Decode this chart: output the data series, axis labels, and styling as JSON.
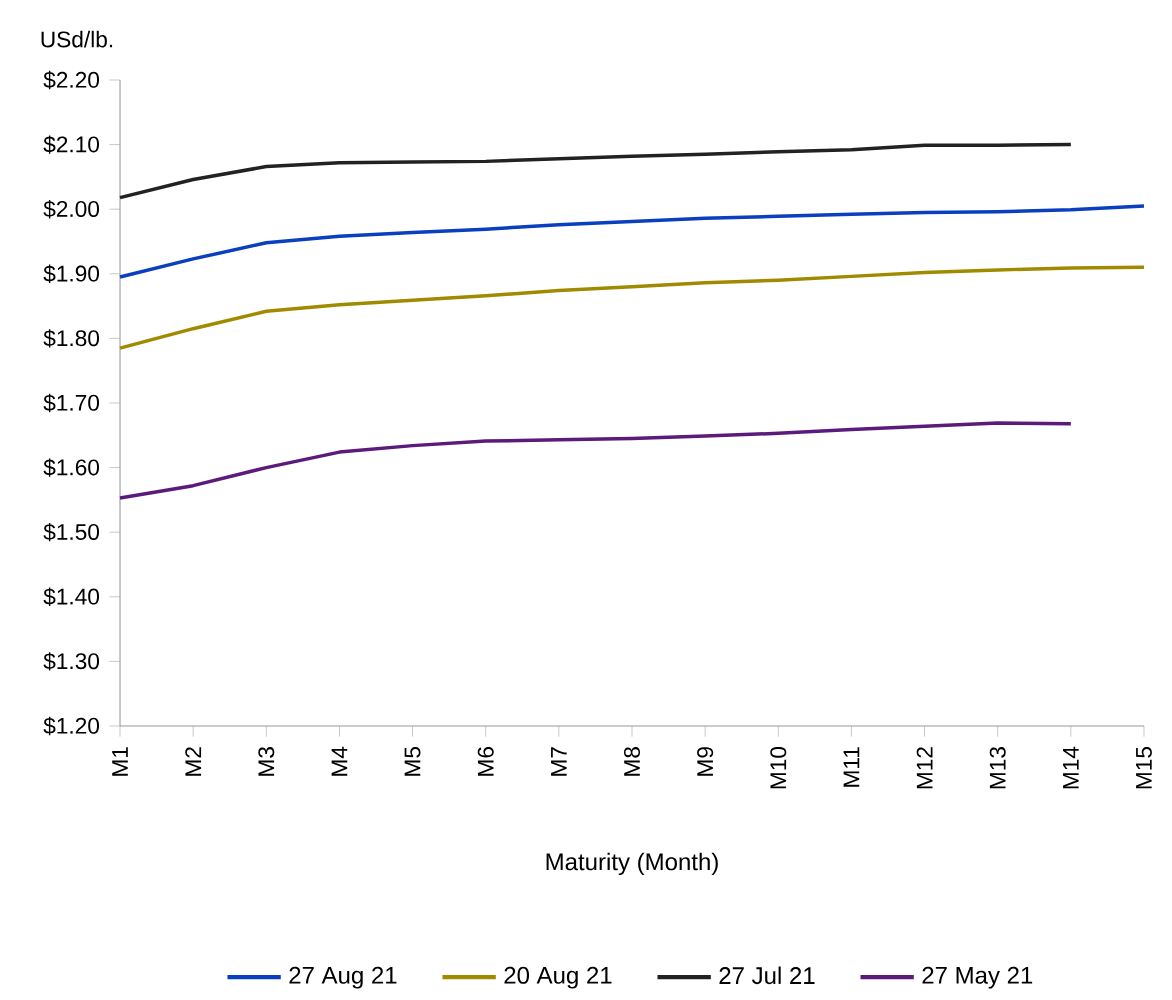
{
  "chart_data": {
    "type": "line",
    "ylabel": "USd/lb.",
    "xlabel": "Maturity (Month)",
    "categories": [
      "M1",
      "M2",
      "M3",
      "M4",
      "M5",
      "M6",
      "M7",
      "M8",
      "M9",
      "M10",
      "M11",
      "M12",
      "M13",
      "M14",
      "M15"
    ],
    "series": [
      {
        "name": "27 Aug 21",
        "color": "#0a3fbf",
        "values": [
          1.895,
          1.923,
          1.948,
          1.958,
          1.964,
          1.969,
          1.976,
          1.981,
          1.986,
          1.989,
          1.992,
          1.995,
          1.996,
          1.999,
          2.005
        ]
      },
      {
        "name": "20 Aug 21",
        "color": "#a08a00",
        "values": [
          1.785,
          1.815,
          1.842,
          1.852,
          1.859,
          1.866,
          1.874,
          1.88,
          1.886,
          1.89,
          1.896,
          1.902,
          1.906,
          1.909,
          1.91
        ]
      },
      {
        "name": "27 Jul 21",
        "color": "#222222",
        "values": [
          2.018,
          2.046,
          2.066,
          2.072,
          2.073,
          2.074,
          2.078,
          2.082,
          2.085,
          2.089,
          2.092,
          2.099,
          2.099,
          2.1,
          null
        ]
      },
      {
        "name": "27 May 21",
        "color": "#5c1a7a",
        "values": [
          1.553,
          1.572,
          1.6,
          1.624,
          1.634,
          1.641,
          1.643,
          1.645,
          1.649,
          1.653,
          1.659,
          1.664,
          1.669,
          1.668,
          null
        ]
      }
    ],
    "ylim": [
      1.2,
      2.2
    ],
    "yticks": [
      {
        "value": 1.2,
        "label": "$1.20"
      },
      {
        "value": 1.3,
        "label": "$1.30"
      },
      {
        "value": 1.4,
        "label": "$1.40"
      },
      {
        "value": 1.5,
        "label": "$1.50"
      },
      {
        "value": 1.6,
        "label": "$1.60"
      },
      {
        "value": 1.7,
        "label": "$1.70"
      },
      {
        "value": 1.8,
        "label": "$1.80"
      },
      {
        "value": 1.9,
        "label": "$1.90"
      },
      {
        "value": 2.0,
        "label": "$2.00"
      },
      {
        "value": 2.1,
        "label": "$2.10"
      },
      {
        "value": 2.2,
        "label": "$2.20"
      }
    ],
    "grid": false,
    "legend": "bottom",
    "marker": "none",
    "line_style": "solid"
  }
}
